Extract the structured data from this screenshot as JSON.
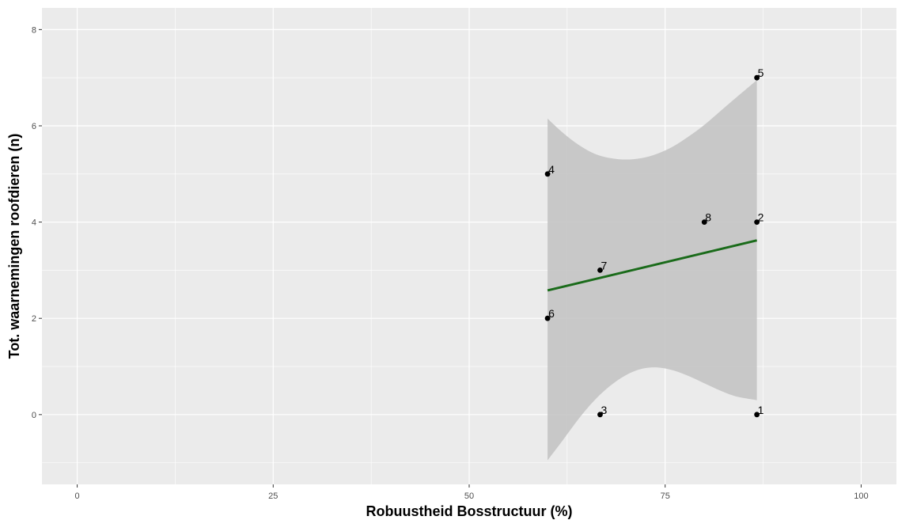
{
  "chart_data": {
    "type": "scatter",
    "xlabel": "Robuustheid Bosstructuur (%)",
    "ylabel": "Tot. waarnemingen roofdieren (n)",
    "xlim": [
      -4.5,
      104.5
    ],
    "ylim": [
      -1.45,
      8.45
    ],
    "x_ticks": [
      0,
      25,
      50,
      75,
      100
    ],
    "x_tick_labels": [
      "0",
      "25",
      "50",
      "75",
      "100"
    ],
    "y_ticks": [
      0,
      2,
      4,
      6,
      8
    ],
    "y_tick_labels": [
      "0",
      "2",
      "4",
      "6",
      "8"
    ],
    "grid": true,
    "points": [
      {
        "label": "1",
        "x": 86.7,
        "y": 0
      },
      {
        "label": "2",
        "x": 86.7,
        "y": 4
      },
      {
        "label": "3",
        "x": 66.7,
        "y": 0
      },
      {
        "label": "4",
        "x": 60.0,
        "y": 5
      },
      {
        "label": "5",
        "x": 86.7,
        "y": 7
      },
      {
        "label": "6",
        "x": 60.0,
        "y": 2
      },
      {
        "label": "7",
        "x": 66.7,
        "y": 3
      },
      {
        "label": "8",
        "x": 80.0,
        "y": 4
      }
    ],
    "trend_line": {
      "x": [
        60.0,
        86.7
      ],
      "y": [
        2.58,
        3.62
      ],
      "color": "#1a6b1a"
    },
    "confidence_band": {
      "x": [
        60.0,
        62.0,
        64.0,
        66.0,
        68.0,
        70.0,
        72.0,
        74.0,
        76.0,
        78.0,
        80.0,
        82.0,
        84.0,
        86.7
      ],
      "upper": [
        6.15,
        5.85,
        5.6,
        5.42,
        5.33,
        5.3,
        5.33,
        5.42,
        5.57,
        5.78,
        6.02,
        6.3,
        6.58,
        6.95
      ],
      "lower": [
        -0.95,
        -0.52,
        -0.08,
        0.3,
        0.6,
        0.82,
        0.95,
        0.98,
        0.92,
        0.8,
        0.65,
        0.5,
        0.38,
        0.3
      ],
      "color": "#c4c4c4"
    },
    "colors": {
      "panel": "#ebebeb",
      "grid_major": "#ffffff",
      "point": "#000000"
    }
  }
}
